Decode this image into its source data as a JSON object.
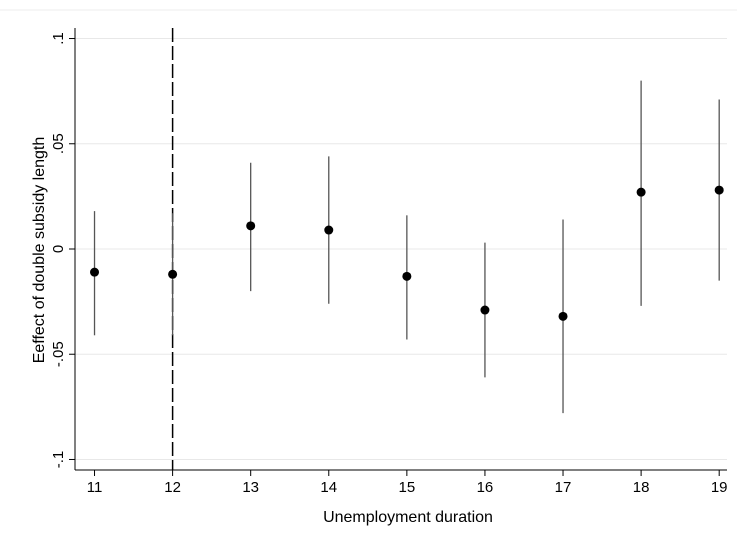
{
  "chart_data": {
    "type": "scatter",
    "xlabel": "Unemployment duration",
    "ylabel": "Eeffect of double subsidy length",
    "x_ticks": [
      "11",
      "12",
      "13",
      "14",
      "15",
      "16",
      "17",
      "18",
      "19"
    ],
    "y_ticks": [
      {
        "value": -0.1,
        "label": "-.1"
      },
      {
        "value": -0.05,
        "label": "-.05"
      },
      {
        "value": 0,
        "label": "0"
      },
      {
        "value": 0.05,
        "label": ".05"
      },
      {
        "value": 0.1,
        "label": ".1"
      }
    ],
    "xlim": [
      10.75,
      19.1
    ],
    "ylim": [
      -0.105,
      0.105
    ],
    "grid": "horizontal",
    "reference_line_x": 12,
    "series": [
      {
        "points": [
          {
            "x": 11,
            "y": -0.011,
            "lower": -0.041,
            "upper": 0.018
          },
          {
            "x": 12,
            "y": -0.012,
            "lower": -0.041,
            "upper": 0.017
          },
          {
            "x": 13,
            "y": 0.011,
            "lower": -0.02,
            "upper": 0.041
          },
          {
            "x": 14,
            "y": 0.009,
            "lower": -0.026,
            "upper": 0.044
          },
          {
            "x": 15,
            "y": -0.013,
            "lower": -0.043,
            "upper": 0.016
          },
          {
            "x": 16,
            "y": -0.029,
            "lower": -0.061,
            "upper": 0.003
          },
          {
            "x": 17,
            "y": -0.032,
            "lower": -0.078,
            "upper": 0.014
          },
          {
            "x": 18,
            "y": 0.027,
            "lower": -0.027,
            "upper": 0.08
          },
          {
            "x": 19,
            "y": 0.028,
            "lower": -0.015,
            "upper": 0.071
          }
        ]
      }
    ],
    "colors": {
      "marker": "#000000",
      "ci_line": "#555555",
      "grid": "#e8e8e8",
      "axis": "#000000",
      "reference_line": "#000000"
    }
  }
}
